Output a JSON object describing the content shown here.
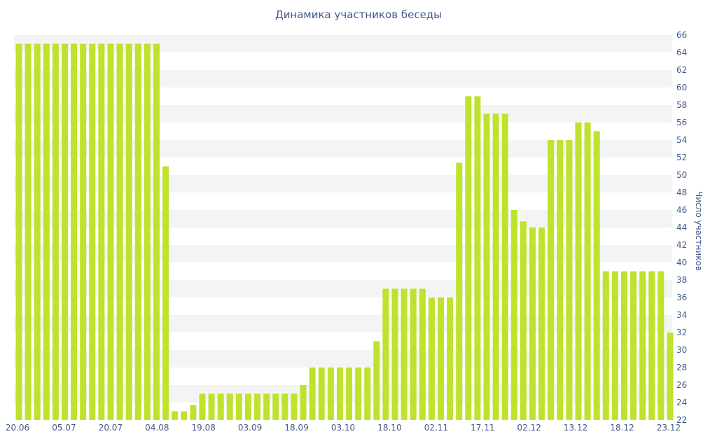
{
  "chart_data": {
    "type": "bar",
    "title": "Динамика участников беседы",
    "xlabel": "",
    "ylabel": "Число участников",
    "ylim": [
      22,
      66
    ],
    "y_ticks": [
      22,
      24,
      26,
      28,
      30,
      32,
      34,
      36,
      38,
      40,
      42,
      44,
      46,
      48,
      50,
      52,
      54,
      56,
      58,
      60,
      62,
      64,
      66
    ],
    "x_tick_labels": [
      "20.06",
      "05.07",
      "20.07",
      "04.08",
      "19.08",
      "03.09",
      "18.09",
      "03.10",
      "18.10",
      "02.11",
      "17.11",
      "02.12",
      "13.12",
      "18.12",
      "23.12"
    ],
    "bar_color": "#bde32c",
    "grid": true,
    "series": [
      {
        "values": [
          65,
          65,
          65,
          65,
          65,
          65,
          65,
          65,
          65,
          65,
          65,
          65,
          65,
          65,
          65,
          65,
          51,
          23,
          23,
          23.7,
          25,
          25,
          25,
          25,
          25,
          25,
          25,
          25,
          25,
          25,
          25,
          26,
          28,
          28,
          28,
          28,
          28,
          28,
          28,
          31,
          37,
          37,
          37,
          37,
          37,
          36,
          36,
          36,
          51.4,
          59,
          59,
          57,
          57,
          57,
          46,
          44.7,
          44,
          44,
          54,
          54,
          54,
          56,
          56,
          55,
          39,
          39,
          39,
          39,
          39,
          39,
          39,
          32
        ]
      }
    ]
  }
}
